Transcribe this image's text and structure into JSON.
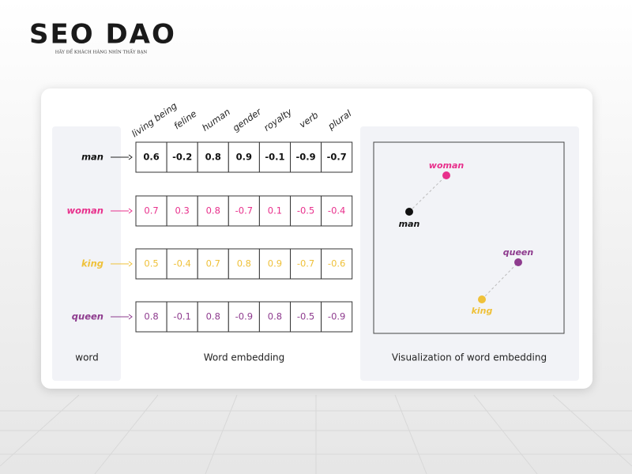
{
  "logo": {
    "title": "SEO DAO",
    "tagline": "HÃY ĐỂ KHÁCH HÀNG NHÌN THẤY BẠN"
  },
  "features": [
    "living being",
    "feline",
    "human",
    "gender",
    "royalty",
    "verb",
    "plural"
  ],
  "words": [
    {
      "label": "man",
      "vector": [
        0.6,
        -0.2,
        0.8,
        0.9,
        -0.1,
        -0.9,
        -0.7
      ]
    },
    {
      "label": "woman",
      "vector": [
        0.7,
        0.3,
        0.8,
        -0.7,
        0.1,
        -0.5,
        -0.4
      ]
    },
    {
      "label": "king",
      "vector": [
        0.5,
        -0.4,
        0.7,
        0.8,
        0.9,
        -0.7,
        -0.6
      ]
    },
    {
      "label": "queen",
      "vector": [
        0.8,
        -0.1,
        0.8,
        -0.9,
        0.8,
        -0.5,
        -0.9
      ]
    }
  ],
  "panels": {
    "word": "word",
    "embedding": "Word embedding",
    "visualization": "Visualization of word embedding"
  },
  "points": [
    {
      "label": "woman"
    },
    {
      "label": "man"
    },
    {
      "label": "queen"
    },
    {
      "label": "king"
    }
  ]
}
